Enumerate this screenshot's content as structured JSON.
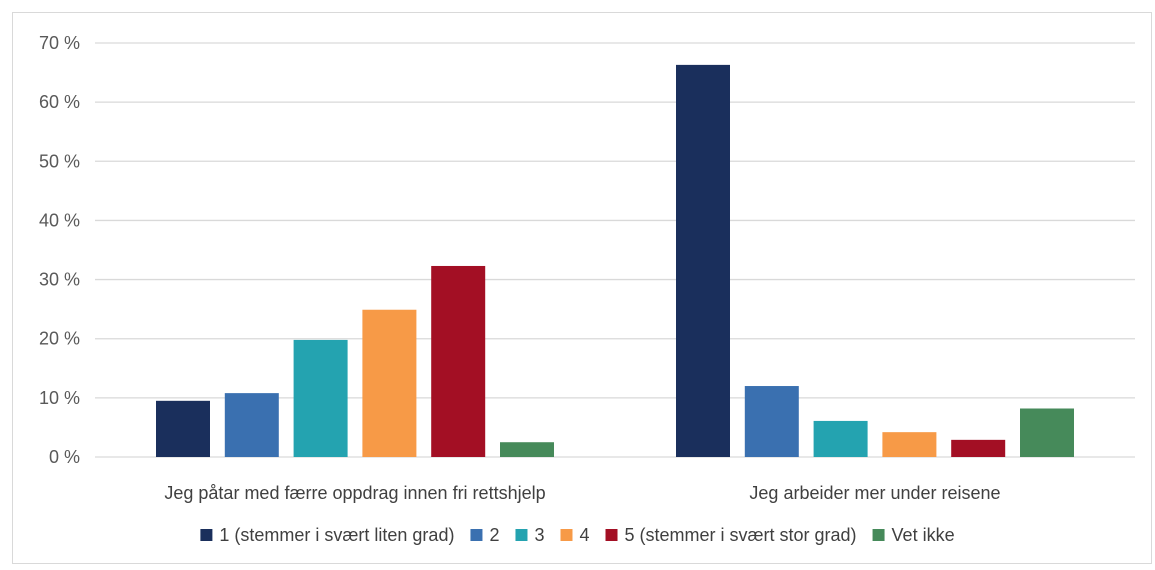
{
  "chart_data": {
    "type": "bar",
    "title": "",
    "xlabel": "",
    "ylabel": "",
    "ylim": [
      0,
      70
    ],
    "yticks": [
      0,
      10,
      20,
      30,
      40,
      50,
      60,
      70
    ],
    "ytick_labels": [
      "0 %",
      "10 %",
      "20 %",
      "30 %",
      "40 %",
      "50 %",
      "60 %",
      "70 %"
    ],
    "grid": true,
    "legend_position": "bottom",
    "categories": [
      "Jeg påtar med færre oppdrag innen fri rettshjelp",
      "Jeg arbeider mer under reisene"
    ],
    "series": [
      {
        "name": "1 (stemmer i svært liten grad)",
        "color": "#1a2f5c",
        "values": [
          9.5,
          66.3
        ]
      },
      {
        "name": "2",
        "color": "#3a70b0",
        "values": [
          10.8,
          12.0
        ]
      },
      {
        "name": "3",
        "color": "#24a3b0",
        "values": [
          19.8,
          6.1
        ]
      },
      {
        "name": "4",
        "color": "#f79a47",
        "values": [
          24.9,
          4.2
        ]
      },
      {
        "name": "5 (stemmer i svært stor grad)",
        "color": "#a30f24",
        "values": [
          32.3,
          2.9
        ]
      },
      {
        "name": "Vet ikke",
        "color": "#468a5a",
        "values": [
          2.5,
          8.2
        ]
      }
    ]
  }
}
